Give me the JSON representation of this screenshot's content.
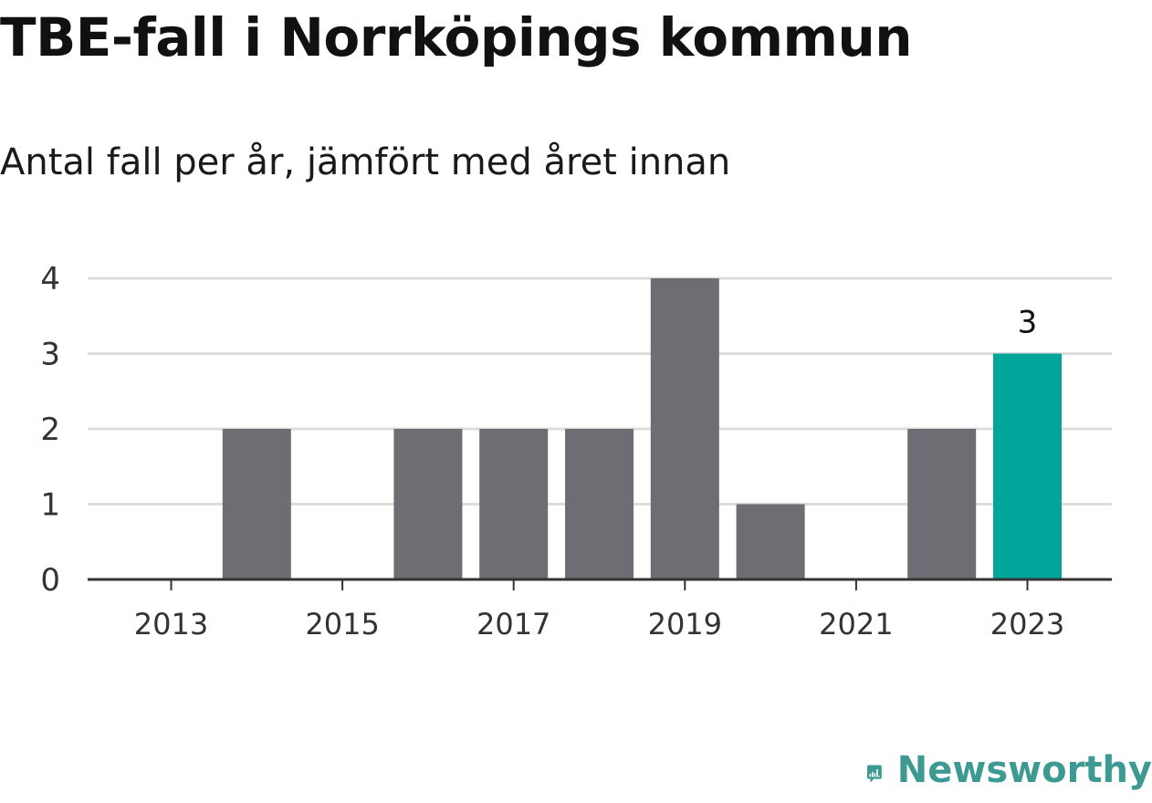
{
  "colors": {
    "bar": "#6e6d73",
    "highlight": "#02a599",
    "grid": "#dcdcdc",
    "axis": "#333333",
    "brand": "#3d9a92"
  },
  "brand": {
    "name": "Newsworthy",
    "icon": "newsworthy-logo-icon"
  },
  "chart_data": {
    "type": "bar",
    "title": "TBE-fall i Norrköpings kommun",
    "subtitle": "Antal fall per år, jämfört med året innan",
    "xlabel": "",
    "ylabel": "",
    "categories": [
      "2013",
      "2014",
      "2015",
      "2016",
      "2017",
      "2018",
      "2019",
      "2020",
      "2021",
      "2022",
      "2023"
    ],
    "values": [
      0,
      2,
      0,
      2,
      2,
      2,
      4,
      1,
      0,
      2,
      3
    ],
    "highlight_index": 10,
    "data_labels": [
      {
        "index": 10,
        "text": "3"
      }
    ],
    "x_tick_labels": [
      "2013",
      "2015",
      "2017",
      "2019",
      "2021",
      "2023"
    ],
    "y_ticks": [
      0,
      1,
      2,
      3,
      4
    ],
    "ylim": [
      0,
      4
    ],
    "grid": true,
    "legend": "none"
  }
}
